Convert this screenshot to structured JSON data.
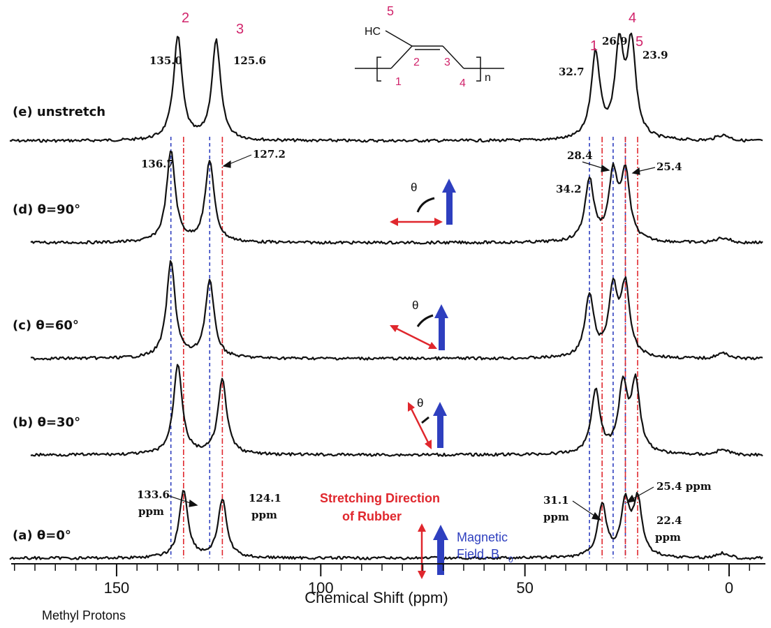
{
  "chart_data": {
    "type": "line",
    "xlabel": "Chemical Shift (ppm)",
    "x_ticks": [
      150,
      100,
      50,
      0
    ],
    "xlim": [
      180,
      -5
    ],
    "footer_note": "Methyl Protons",
    "spectra": [
      {
        "id": "e",
        "name": "(e) unstretch",
        "peaks": [
          {
            "ppm": 135.0,
            "h": 1.0
          },
          {
            "ppm": 125.6,
            "h": 0.96
          },
          {
            "ppm": 32.7,
            "h": 0.83
          },
          {
            "ppm": 26.9,
            "h": 0.87
          },
          {
            "ppm": 23.9,
            "h": 0.9
          }
        ]
      },
      {
        "id": "d",
        "name": "(d) θ=90°",
        "peaks": [
          {
            "ppm": 136.7,
            "h": 1.0
          },
          {
            "ppm": 127.2,
            "h": 0.9
          },
          {
            "ppm": 34.2,
            "h": 0.68
          },
          {
            "ppm": 28.4,
            "h": 0.72
          },
          {
            "ppm": 25.4,
            "h": 0.74
          }
        ]
      },
      {
        "id": "c",
        "name": "(c) θ=60°",
        "peaks": [
          {
            "ppm": 136.7,
            "h": 1.0
          },
          {
            "ppm": 127.2,
            "h": 0.8
          },
          {
            "ppm": 34.2,
            "h": 0.64
          },
          {
            "ppm": 28.4,
            "h": 0.7
          },
          {
            "ppm": 25.4,
            "h": 0.72
          }
        ]
      },
      {
        "id": "b",
        "name": "(b) θ=30°",
        "peaks": [
          {
            "ppm": 135.0,
            "h": 1.0
          },
          {
            "ppm": 124.1,
            "h": 0.82
          },
          {
            "ppm": 32.7,
            "h": 0.7
          },
          {
            "ppm": 26.0,
            "h": 0.74
          },
          {
            "ppm": 22.9,
            "h": 0.76
          }
        ]
      },
      {
        "id": "a",
        "name": "(a) θ=0°",
        "peaks": [
          {
            "ppm": 133.6,
            "h": 0.72
          },
          {
            "ppm": 124.1,
            "h": 0.62
          },
          {
            "ppm": 31.1,
            "h": 0.56
          },
          {
            "ppm": 25.4,
            "h": 0.56
          },
          {
            "ppm": 22.4,
            "h": 0.6
          }
        ]
      }
    ],
    "peak_labels": {
      "e": [
        "135.0",
        "125.6",
        "32.7",
        "26.9",
        "23.9"
      ],
      "d": [
        "136.7",
        "127.2",
        "34.2",
        "28.4",
        "25.4"
      ],
      "a": [
        "133.6",
        "ppm",
        "124.1",
        "ppm",
        "31.1",
        "ppm",
        "25.4 ppm",
        "22.4",
        "ppm"
      ]
    },
    "peak_numbers": [
      "2",
      "3",
      "1",
      "4",
      "5"
    ],
    "guides_ppm": {
      "blue": [
        136.7,
        127.2,
        34.2,
        28.4,
        25.4
      ],
      "red": [
        133.6,
        124.1,
        31.1,
        25.4,
        22.4
      ]
    },
    "structure": {
      "methyl": "HC",
      "carbon_numbers": [
        "5",
        "2",
        "3",
        "1",
        "4"
      ],
      "repeat": "n"
    },
    "theta_symbol": "θ",
    "angles_deg": [
      90,
      60,
      30,
      0
    ],
    "legend": {
      "stretch_line1": "Stretching Direction",
      "stretch_line2": "of Rubber",
      "field_line1": "Magnetic",
      "field_line2": "Field, B",
      "field_subscript": "0"
    },
    "colors": {
      "trace": "#111111",
      "blue": "#2e3fbf",
      "red": "#e0272d",
      "magenta": "#d1246b"
    }
  }
}
